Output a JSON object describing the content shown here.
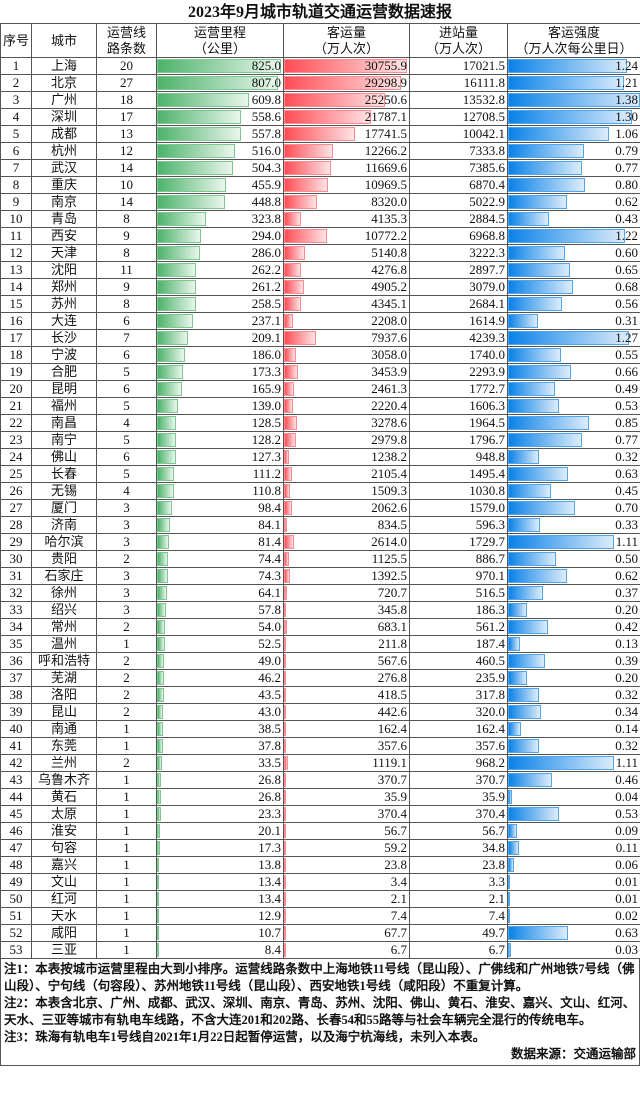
{
  "title": "2023年9月城市轨道交通运营数据速报",
  "headers": [
    "序号",
    "城市",
    "运营线\n路条数",
    "运营里程\n（公里）",
    "客运量\n（万人次）",
    "进站量\n（万人次）",
    "客运强度\n（万人次每公里日）"
  ],
  "colors": {
    "mileage_bar": "#4db36b",
    "passenger_bar": "#ff4d55",
    "intensity_bar": "#0a82e8"
  },
  "rows": [
    [
      "1",
      "上海",
      "20",
      "825.0",
      "30755.9",
      "17021.5",
      "1.24"
    ],
    [
      "2",
      "北京",
      "27",
      "807.0",
      "29298.9",
      "16111.8",
      "1.21"
    ],
    [
      "3",
      "广州",
      "18",
      "609.8",
      "25250.6",
      "13532.8",
      "1.38"
    ],
    [
      "4",
      "深圳",
      "17",
      "558.6",
      "21787.1",
      "12708.5",
      "1.30"
    ],
    [
      "5",
      "成都",
      "13",
      "557.8",
      "17741.5",
      "10042.1",
      "1.06"
    ],
    [
      "6",
      "杭州",
      "12",
      "516.0",
      "12266.2",
      "7333.8",
      "0.79"
    ],
    [
      "7",
      "武汉",
      "14",
      "504.3",
      "11669.6",
      "7385.6",
      "0.77"
    ],
    [
      "8",
      "重庆",
      "10",
      "455.9",
      "10969.5",
      "6870.4",
      "0.80"
    ],
    [
      "9",
      "南京",
      "14",
      "448.8",
      "8320.0",
      "5022.9",
      "0.62"
    ],
    [
      "10",
      "青岛",
      "8",
      "323.8",
      "4135.3",
      "2884.5",
      "0.43"
    ],
    [
      "11",
      "西安",
      "9",
      "294.0",
      "10772.2",
      "6968.8",
      "1.22"
    ],
    [
      "12",
      "天津",
      "8",
      "286.0",
      "5140.8",
      "3222.3",
      "0.60"
    ],
    [
      "13",
      "沈阳",
      "11",
      "262.2",
      "4276.8",
      "2897.7",
      "0.65"
    ],
    [
      "14",
      "郑州",
      "9",
      "261.2",
      "4905.2",
      "3079.0",
      "0.68"
    ],
    [
      "15",
      "苏州",
      "8",
      "258.5",
      "4345.1",
      "2684.1",
      "0.56"
    ],
    [
      "16",
      "大连",
      "6",
      "237.1",
      "2208.0",
      "1614.9",
      "0.31"
    ],
    [
      "17",
      "长沙",
      "7",
      "209.1",
      "7937.6",
      "4239.3",
      "1.27"
    ],
    [
      "18",
      "宁波",
      "6",
      "186.0",
      "3058.0",
      "1740.0",
      "0.55"
    ],
    [
      "19",
      "合肥",
      "5",
      "173.3",
      "3453.9",
      "2293.9",
      "0.66"
    ],
    [
      "20",
      "昆明",
      "6",
      "165.9",
      "2461.3",
      "1772.7",
      "0.49"
    ],
    [
      "21",
      "福州",
      "5",
      "139.0",
      "2220.4",
      "1606.3",
      "0.53"
    ],
    [
      "22",
      "南昌",
      "4",
      "128.5",
      "3278.6",
      "1964.5",
      "0.85"
    ],
    [
      "23",
      "南宁",
      "5",
      "128.2",
      "2979.8",
      "1796.7",
      "0.77"
    ],
    [
      "24",
      "佛山",
      "6",
      "127.3",
      "1238.2",
      "948.8",
      "0.32"
    ],
    [
      "25",
      "长春",
      "5",
      "111.2",
      "2105.4",
      "1495.4",
      "0.63"
    ],
    [
      "26",
      "无锡",
      "4",
      "110.8",
      "1509.3",
      "1030.8",
      "0.45"
    ],
    [
      "27",
      "厦门",
      "3",
      "98.4",
      "2062.6",
      "1579.0",
      "0.70"
    ],
    [
      "28",
      "济南",
      "3",
      "84.1",
      "834.5",
      "596.3",
      "0.33"
    ],
    [
      "29",
      "哈尔滨",
      "3",
      "81.4",
      "2614.0",
      "1729.7",
      "1.11"
    ],
    [
      "30",
      "贵阳",
      "2",
      "74.4",
      "1125.5",
      "886.7",
      "0.50"
    ],
    [
      "31",
      "石家庄",
      "3",
      "74.3",
      "1392.5",
      "970.1",
      "0.62"
    ],
    [
      "32",
      "徐州",
      "3",
      "64.1",
      "720.7",
      "516.5",
      "0.37"
    ],
    [
      "33",
      "绍兴",
      "3",
      "57.8",
      "345.8",
      "186.3",
      "0.20"
    ],
    [
      "34",
      "常州",
      "2",
      "54.0",
      "683.1",
      "561.2",
      "0.42"
    ],
    [
      "35",
      "温州",
      "1",
      "52.5",
      "211.8",
      "187.4",
      "0.13"
    ],
    [
      "36",
      "呼和浩特",
      "2",
      "49.0",
      "567.6",
      "460.5",
      "0.39"
    ],
    [
      "37",
      "芜湖",
      "2",
      "46.2",
      "276.8",
      "235.9",
      "0.20"
    ],
    [
      "38",
      "洛阳",
      "2",
      "43.5",
      "418.5",
      "317.8",
      "0.32"
    ],
    [
      "39",
      "昆山",
      "2",
      "43.0",
      "442.6",
      "320.0",
      "0.34"
    ],
    [
      "40",
      "南通",
      "1",
      "38.5",
      "162.4",
      "162.4",
      "0.14"
    ],
    [
      "41",
      "东莞",
      "1",
      "37.8",
      "357.6",
      "357.6",
      "0.32"
    ],
    [
      "42",
      "兰州",
      "2",
      "33.5",
      "1119.1",
      "968.2",
      "1.11"
    ],
    [
      "43",
      "乌鲁木齐",
      "1",
      "26.8",
      "370.7",
      "370.7",
      "0.46"
    ],
    [
      "44",
      "黄石",
      "1",
      "26.8",
      "35.9",
      "35.9",
      "0.04"
    ],
    [
      "45",
      "太原",
      "1",
      "23.3",
      "370.4",
      "370.4",
      "0.53"
    ],
    [
      "46",
      "淮安",
      "1",
      "20.1",
      "56.7",
      "56.7",
      "0.09"
    ],
    [
      "47",
      "句容",
      "1",
      "17.3",
      "59.2",
      "34.8",
      "0.11"
    ],
    [
      "48",
      "嘉兴",
      "1",
      "13.8",
      "23.8",
      "23.8",
      "0.06"
    ],
    [
      "49",
      "文山",
      "1",
      "13.4",
      "3.4",
      "3.3",
      "0.01"
    ],
    [
      "50",
      "红河",
      "1",
      "13.4",
      "2.1",
      "2.1",
      "0.01"
    ],
    [
      "51",
      "天水",
      "1",
      "12.9",
      "7.4",
      "7.4",
      "0.02"
    ],
    [
      "52",
      "咸阳",
      "1",
      "10.7",
      "67.7",
      "49.7",
      "0.63"
    ],
    [
      "53",
      "三亚",
      "1",
      "8.4",
      "6.7",
      "6.7",
      "0.03"
    ]
  ],
  "notes": [
    "注1：本表按城市运营里程由大到小排序。运营线路条数中上海地铁11号线（昆山段）、广佛线和广州地铁7号线（佛山段）、宁句线（句容段）、苏州地铁11号线（昆山段）、西安地铁1号线（咸阳段）不重复计算。",
    "注2：本表含北京、广州、成都、武汉、深圳、南京、青岛、苏州、沈阳、佛山、黄石、淮安、嘉兴、文山、红河、天水、三亚等城市有轨电车线路，不含大连201和202路、长春54和55路等与社会车辆完全混行的传统电车。",
    "注3：珠海有轨电车1号线自2021年1月22日起暂停运营，以及海宁杭海线，未列入本表。"
  ],
  "source": "数据来源：交通运输部"
}
